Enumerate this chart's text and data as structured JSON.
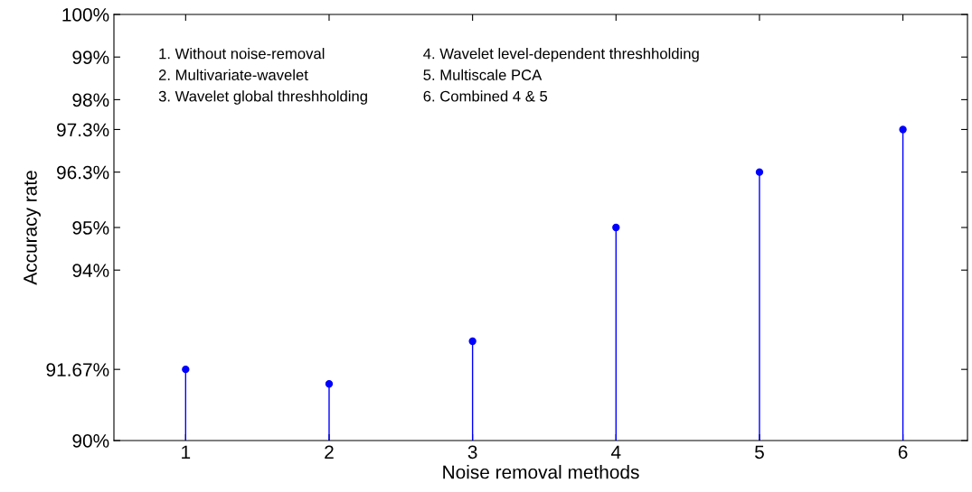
{
  "chart_data": {
    "type": "lollipop",
    "xlabel": "Noise removal methods",
    "ylabel": "Accuracy rate",
    "x": [
      1,
      2,
      3,
      4,
      5,
      6
    ],
    "values": [
      91.67,
      91.33,
      92.33,
      95,
      96.3,
      97.3
    ],
    "color": "#0000ff",
    "marker": "circle",
    "xlim": [
      0.5,
      6.45
    ],
    "xticks": [
      1,
      2,
      3,
      4,
      5,
      6
    ],
    "ylim": [
      90,
      100
    ],
    "yticks": [
      {
        "value": 90,
        "label": "90%"
      },
      {
        "value": 91.67,
        "label": "91.67%"
      },
      {
        "value": 94,
        "label": "94%"
      },
      {
        "value": 95,
        "label": "95%"
      },
      {
        "value": 96.3,
        "label": "96.3%"
      },
      {
        "value": 97.3,
        "label": "97.3%"
      },
      {
        "value": 98,
        "label": "98%"
      },
      {
        "value": 99,
        "label": "99%"
      },
      {
        "value": 100,
        "label": "100%"
      }
    ],
    "annotations": [
      "1. Without noise-removal",
      "2. Multivariate-wavelet",
      "3. Wavelet global threshholding",
      "4. Wavelet level-dependent threshholding",
      "5. Multiscale PCA",
      "6. Combined 4 & 5"
    ],
    "grid": false,
    "legend": false
  }
}
